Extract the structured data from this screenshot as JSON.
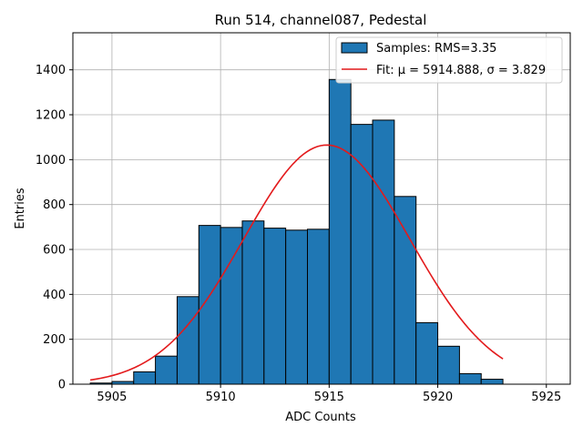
{
  "chart_data": {
    "type": "bar",
    "title": "Run 514, channel087, Pedestal",
    "xlabel": "ADC Counts",
    "ylabel": "Entries",
    "xlim": [
      5903.2,
      5926.1
    ],
    "ylim": [
      0,
      1565
    ],
    "xticks": [
      5905,
      5910,
      5915,
      5920,
      5925
    ],
    "yticks": [
      0,
      200,
      400,
      600,
      800,
      1000,
      1200,
      1400
    ],
    "grid": true,
    "bar_color": "#1f77b4",
    "fit_color": "#e31a1c",
    "bins": [
      {
        "x0": 5904,
        "x1": 5905,
        "value": 5
      },
      {
        "x0": 5905,
        "x1": 5906,
        "value": 12
      },
      {
        "x0": 5906,
        "x1": 5907,
        "value": 55
      },
      {
        "x0": 5907,
        "x1": 5908,
        "value": 125
      },
      {
        "x0": 5908,
        "x1": 5909,
        "value": 390
      },
      {
        "x0": 5909,
        "x1": 5910,
        "value": 707
      },
      {
        "x0": 5910,
        "x1": 5911,
        "value": 698
      },
      {
        "x0": 5911,
        "x1": 5912,
        "value": 727
      },
      {
        "x0": 5912,
        "x1": 5913,
        "value": 695
      },
      {
        "x0": 5913,
        "x1": 5914,
        "value": 686
      },
      {
        "x0": 5914,
        "x1": 5915,
        "value": 690
      },
      {
        "x0": 5915,
        "x1": 5916,
        "value": 1357
      },
      {
        "x0": 5916,
        "x1": 5917,
        "value": 1157
      },
      {
        "x0": 5917,
        "x1": 5918,
        "value": 1176
      },
      {
        "x0": 5918,
        "x1": 5919,
        "value": 836
      },
      {
        "x0": 5919,
        "x1": 5920,
        "value": 274
      },
      {
        "x0": 5920,
        "x1": 5921,
        "value": 169
      },
      {
        "x0": 5921,
        "x1": 5922,
        "value": 47
      },
      {
        "x0": 5922,
        "x1": 5923,
        "value": 22
      }
    ],
    "fit": {
      "mu": 5914.888,
      "sigma": 3.829,
      "amplitude": 1065,
      "x_range": [
        5904,
        5923
      ]
    },
    "legend": {
      "position": "top-right",
      "entries": [
        {
          "label": "Samples: RMS=3.35",
          "kind": "patch"
        },
        {
          "label": "Fit: μ = 5914.888, σ = 3.829",
          "kind": "line"
        }
      ]
    }
  }
}
